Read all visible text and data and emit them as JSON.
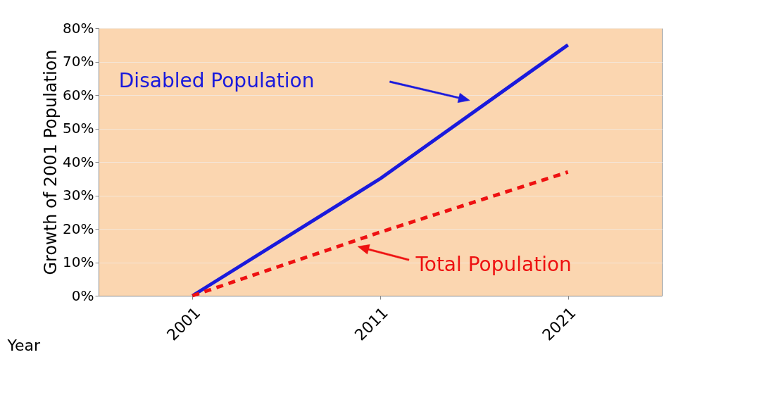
{
  "chart_data": {
    "type": "line",
    "xlabel": "Year",
    "ylabel": "Growth of 2001 Population",
    "categories": [
      "2001",
      "2011",
      "2021"
    ],
    "series": [
      {
        "name": "Disabled Population",
        "color": "#1a1adc",
        "values": [
          0,
          35,
          75
        ],
        "line_style": "solid"
      },
      {
        "name": "Total Population",
        "color": "#ee1111",
        "values": [
          0,
          19,
          37
        ],
        "line_style": "dashed"
      }
    ],
    "ylim": [
      0,
      80
    ],
    "yticks": [
      {
        "value": 0,
        "label": "0%"
      },
      {
        "value": 10,
        "label": "10%"
      },
      {
        "value": 20,
        "label": "20%"
      },
      {
        "value": 30,
        "label": "30%"
      },
      {
        "value": 40,
        "label": "40%"
      },
      {
        "value": 50,
        "label": "50%"
      },
      {
        "value": 60,
        "label": "60%"
      },
      {
        "value": 70,
        "label": "70%"
      },
      {
        "value": 80,
        "label": "80%"
      }
    ],
    "grid": "y",
    "marker": "none"
  }
}
